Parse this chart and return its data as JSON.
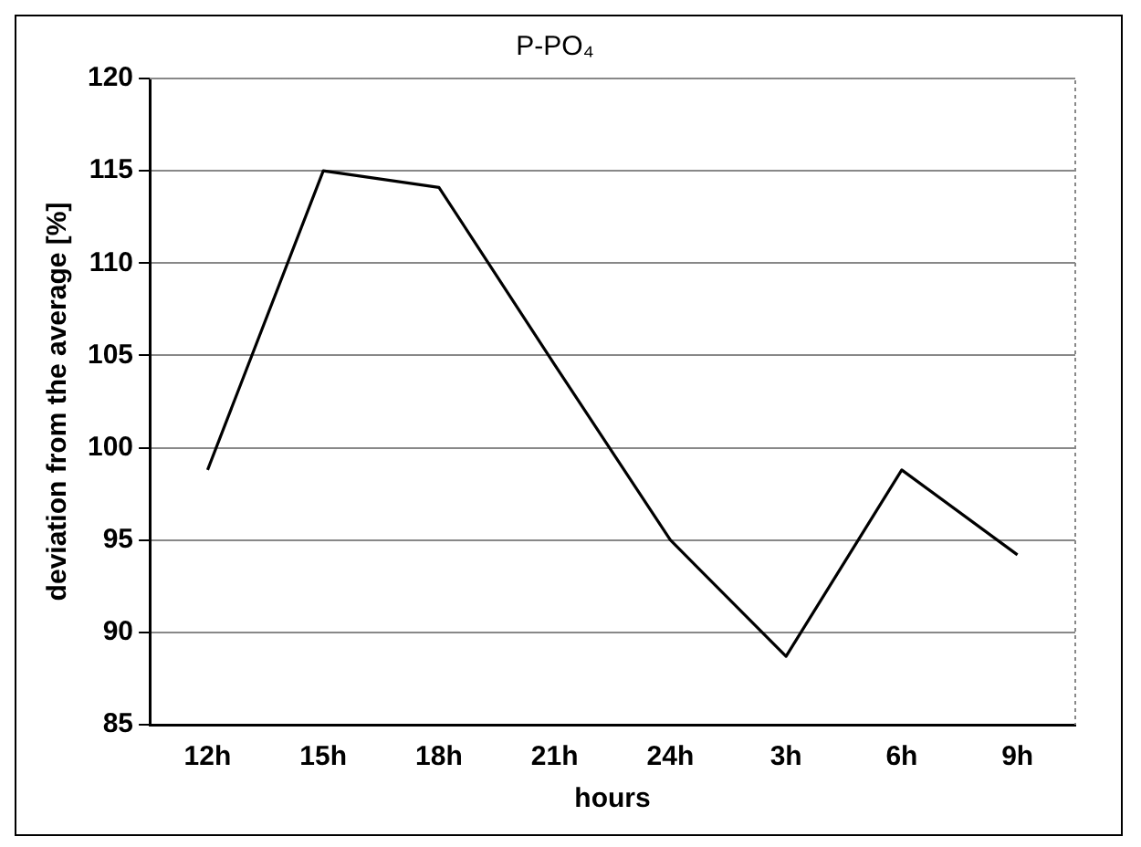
{
  "chart_data": {
    "type": "line",
    "title": "P-PO₄",
    "xlabel": "hours",
    "ylabel": "deviation from the average [%]",
    "categories": [
      "12h",
      "15h",
      "18h",
      "21h",
      "24h",
      "3h",
      "6h",
      "9h"
    ],
    "series": [
      {
        "color": "#000000",
        "values": [
          98.8,
          115,
          114.1,
          104.5,
          95,
          88.7,
          98.8,
          94.2
        ]
      }
    ],
    "ylim": [
      85,
      120
    ],
    "yticks": [
      85,
      90,
      95,
      100,
      105,
      110,
      115,
      120
    ],
    "grid": "y",
    "legend": false,
    "marker": "none",
    "line_style": "solid"
  }
}
